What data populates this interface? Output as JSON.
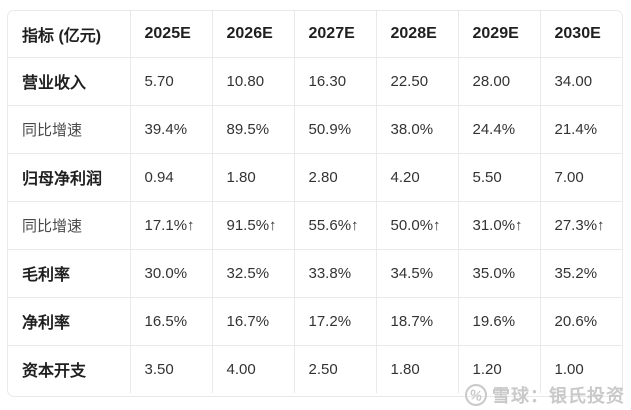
{
  "chart_data": {
    "type": "table",
    "title": "",
    "unit_note": "亿元",
    "columns": [
      "指标 (亿元)",
      "2025E",
      "2026E",
      "2027E",
      "2028E",
      "2029E",
      "2030E"
    ],
    "rows": [
      {
        "label": "营业收入",
        "emphasis": true,
        "values": [
          "5.70",
          "10.80",
          "16.30",
          "22.50",
          "28.00",
          "34.00"
        ]
      },
      {
        "label": "同比增速",
        "emphasis": false,
        "values": [
          "39.4%",
          "89.5%",
          "50.9%",
          "38.0%",
          "24.4%",
          "21.4%"
        ]
      },
      {
        "label": "归母净利润",
        "emphasis": true,
        "values": [
          "0.94",
          "1.80",
          "2.80",
          "4.20",
          "5.50",
          "7.00"
        ]
      },
      {
        "label": "同比增速",
        "emphasis": false,
        "values": [
          "17.1%↑",
          "91.5%↑",
          "55.6%↑",
          "50.0%↑",
          "31.0%↑",
          "27.3%↑"
        ]
      },
      {
        "label": "毛利率",
        "emphasis": true,
        "values": [
          "30.0%",
          "32.5%",
          "33.8%",
          "34.5%",
          "35.0%",
          "35.2%"
        ]
      },
      {
        "label": "净利率",
        "emphasis": true,
        "values": [
          "16.5%",
          "16.7%",
          "17.2%",
          "18.7%",
          "19.6%",
          "20.6%"
        ]
      },
      {
        "label": "资本开支",
        "emphasis": true,
        "values": [
          "3.50",
          "4.00",
          "2.50",
          "1.80",
          "1.20",
          "1.00"
        ]
      }
    ],
    "layout": {
      "grid": true,
      "header_bold": true
    }
  },
  "watermark": {
    "logo_icon": "xueqiu-snowball-icon",
    "logo_glyph": "%",
    "text": "雪球：银氏投资"
  },
  "colors": {
    "border": "#e9e9e9",
    "text_primary": "#1f1f1f",
    "text_secondary": "#4a4a4a",
    "text_value": "#333333",
    "watermark": "#c9c9c9",
    "background": "#ffffff"
  }
}
